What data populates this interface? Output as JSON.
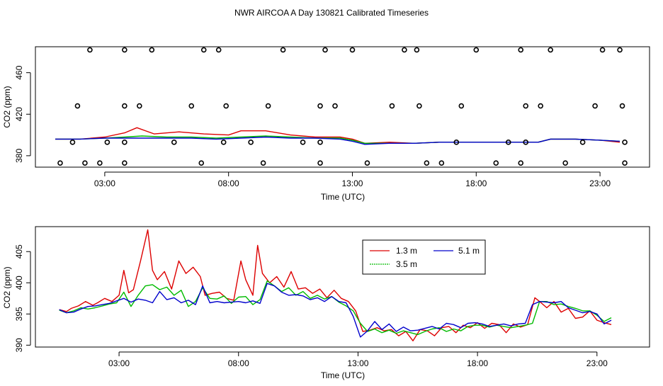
{
  "title": "NWR AIRCOA A  Day 130821  Calibrated Timeseries",
  "chart_data": [
    {
      "type": "scatter",
      "panel": "top",
      "xlabel": "Time (UTC)",
      "ylabel": "CO2 (ppm)",
      "xlim": [
        0.2,
        25.0
      ],
      "ylim": [
        369,
        485
      ],
      "xticks": [
        3,
        8,
        13,
        18,
        23
      ],
      "xtick_labels": [
        "03:00",
        "08:00",
        "13:00",
        "18:00",
        "23:00"
      ],
      "yticks": [
        380,
        420,
        460
      ],
      "yticks_labels": [
        "380",
        "420",
        "460"
      ],
      "calibration_points": {
        "name": "calibration standards",
        "x": [
          1.2,
          2.2,
          2.8,
          3.8,
          6.9,
          9.4,
          11.7,
          13.6,
          16.0,
          16.6,
          18.8,
          19.8,
          21.6,
          24.0,
          1.7,
          3.1,
          3.8,
          5.8,
          7.8,
          8.9,
          11.0,
          11.7,
          17.2,
          19.3,
          20.0,
          22.3,
          24.0,
          1.9,
          3.8,
          4.4,
          6.5,
          7.9,
          9.6,
          11.7,
          12.3,
          14.6,
          15.7,
          17.4,
          20.0,
          20.6,
          22.8,
          23.9,
          2.4,
          3.8,
          4.9,
          7.0,
          7.6,
          10.2,
          11.9,
          13.0,
          15.1,
          15.6,
          18.0,
          19.8,
          21.0,
          23.1,
          23.8
        ],
        "y": [
          373,
          373,
          373,
          373,
          373,
          373,
          373,
          373,
          373,
          373,
          373,
          373,
          373,
          373,
          393,
          393,
          393,
          393,
          393,
          393,
          393,
          393,
          393,
          393,
          393,
          393,
          393,
          428,
          428,
          428,
          428,
          428,
          428,
          428,
          428,
          428,
          428,
          428,
          428,
          428,
          428,
          428,
          482,
          482,
          482,
          482,
          482,
          482,
          482,
          482,
          482,
          482,
          482,
          482,
          482,
          482,
          482
        ]
      },
      "series": [
        {
          "name": "1.3 m",
          "color": "#dd0000",
          "x": [
            1.0,
            2.0,
            3.0,
            3.8,
            4.3,
            5.0,
            6.0,
            7.0,
            8.0,
            8.5,
            9.5,
            10.5,
            11.5,
            12.5,
            13.0,
            13.5,
            14.5,
            15.5,
            16.5,
            17.5,
            18.5,
            19.5,
            20.5,
            21.0,
            22.0,
            23.0,
            23.8
          ],
          "values": [
            396,
            396,
            398,
            402,
            407,
            401,
            403,
            401,
            400,
            404,
            404,
            400,
            398,
            398,
            396,
            392,
            393,
            392,
            393,
            393,
            393,
            393,
            393,
            396,
            396,
            395,
            393
          ]
        },
        {
          "name": "3.5 m",
          "color": "#00bb00",
          "x": [
            1.0,
            2.0,
            3.0,
            3.8,
            4.5,
            5.5,
            6.5,
            7.5,
            8.5,
            9.5,
            10.5,
            11.5,
            12.5,
            13.0,
            13.5,
            14.5,
            15.5,
            16.5,
            17.5,
            18.5,
            19.5,
            20.5,
            21.0,
            22.0,
            23.0,
            23.8
          ],
          "values": [
            396,
            396,
            397,
            398,
            399,
            398,
            398,
            397,
            398,
            399,
            398,
            397,
            397,
            395,
            392,
            392,
            392,
            393,
            393,
            393,
            393,
            393,
            396,
            396,
            395,
            394
          ]
        },
        {
          "name": "5.1 m",
          "color": "#0000cc",
          "x": [
            1.0,
            2.0,
            3.0,
            3.8,
            4.5,
            5.5,
            6.5,
            7.5,
            8.5,
            9.5,
            10.5,
            11.5,
            12.5,
            13.0,
            13.5,
            14.5,
            15.5,
            16.5,
            17.5,
            18.5,
            19.5,
            20.5,
            21.0,
            22.0,
            23.0,
            23.8
          ],
          "values": [
            396,
            396,
            397,
            397,
            397,
            397,
            397,
            396,
            397,
            398,
            397,
            397,
            396,
            394,
            391,
            392,
            392,
            393,
            393,
            393,
            393,
            393,
            396,
            396,
            395,
            394
          ]
        }
      ]
    },
    {
      "type": "line",
      "panel": "bottom",
      "xlabel": "Time (UTC)",
      "ylabel": "CO2 (ppm)",
      "xlim": [
        -0.5,
        25.2
      ],
      "ylim": [
        389.7,
        409.0
      ],
      "xticks": [
        3,
        8,
        13,
        18,
        23
      ],
      "xtick_labels": [
        "03:00",
        "08:00",
        "13:00",
        "18:00",
        "23:00"
      ],
      "yticks": [
        390,
        395,
        400,
        405
      ],
      "yticks_labels": [
        "390",
        "395",
        "400",
        "405"
      ],
      "legend": {
        "position": "top-center",
        "columns": 2
      },
      "series": [
        {
          "name": "1.3 m",
          "color": "#dd0000",
          "x": [
            0.5,
            0.8,
            1.0,
            1.3,
            1.6,
            1.9,
            2.1,
            2.4,
            2.7,
            3.0,
            3.2,
            3.4,
            3.6,
            3.9,
            4.2,
            4.4,
            4.6,
            4.9,
            5.2,
            5.5,
            5.8,
            6.1,
            6.4,
            6.6,
            6.9,
            7.2,
            7.5,
            7.8,
            8.1,
            8.3,
            8.6,
            8.8,
            9.0,
            9.3,
            9.6,
            9.9,
            10.2,
            10.5,
            10.8,
            11.1,
            11.4,
            11.7,
            12.0,
            12.3,
            12.6,
            12.9,
            13.2,
            13.5,
            13.8,
            14.1,
            14.4,
            14.7,
            15.0,
            15.3,
            15.6,
            15.9,
            16.2,
            16.5,
            16.8,
            17.1,
            17.4,
            17.7,
            18.0,
            18.3,
            18.6,
            18.9,
            19.2,
            19.5,
            19.8,
            20.1,
            20.4,
            20.6,
            20.9,
            21.2,
            21.5,
            21.8,
            22.1,
            22.4,
            22.7,
            23.0,
            23.3,
            23.6
          ],
          "values": [
            395.7,
            395.4,
            395.9,
            396.3,
            397.0,
            396.4,
            396.8,
            397.5,
            397.0,
            398.0,
            402.0,
            398.4,
            398.9,
            403.5,
            408.5,
            402.0,
            400.5,
            401.8,
            399.0,
            403.5,
            401.5,
            402.5,
            401.0,
            398.0,
            398.3,
            398.5,
            397.5,
            397.2,
            403.5,
            400.5,
            398.0,
            406.0,
            401.5,
            400.0,
            401.0,
            399.3,
            401.8,
            399.0,
            399.2,
            398.3,
            399.0,
            397.6,
            398.8,
            397.5,
            397.0,
            395.5,
            392.2,
            392.4,
            392.8,
            392.3,
            392.5,
            391.5,
            392.2,
            390.7,
            392.5,
            392.3,
            391.5,
            392.8,
            393.0,
            392.0,
            393.2,
            392.8,
            393.6,
            392.7,
            393.5,
            393.3,
            392.0,
            393.4,
            392.9,
            393.3,
            397.6,
            397.0,
            396.0,
            397.0,
            395.3,
            395.9,
            394.3,
            394.5,
            395.5,
            394.0,
            393.6,
            393.3
          ]
        },
        {
          "name": "3.5 m",
          "color": "#00bb00",
          "x": [
            0.5,
            0.8,
            1.1,
            1.4,
            1.7,
            2.0,
            2.3,
            2.6,
            2.9,
            3.2,
            3.5,
            3.8,
            4.1,
            4.4,
            4.7,
            5.0,
            5.3,
            5.6,
            5.9,
            6.2,
            6.5,
            6.8,
            7.1,
            7.4,
            7.7,
            8.0,
            8.3,
            8.6,
            8.9,
            9.2,
            9.5,
            9.8,
            10.1,
            10.4,
            10.7,
            11.0,
            11.3,
            11.6,
            11.9,
            12.2,
            12.5,
            12.8,
            13.1,
            13.4,
            13.7,
            14.0,
            14.3,
            14.6,
            14.9,
            15.2,
            15.5,
            15.8,
            16.1,
            16.4,
            16.7,
            17.0,
            17.3,
            17.6,
            17.9,
            18.2,
            18.5,
            18.8,
            19.1,
            19.4,
            19.7,
            20.0,
            20.3,
            20.6,
            20.9,
            21.2,
            21.5,
            21.8,
            22.1,
            22.4,
            22.7,
            23.0,
            23.3,
            23.6
          ],
          "values": [
            395.6,
            395.2,
            395.5,
            396.0,
            395.8,
            396.0,
            396.3,
            396.6,
            396.8,
            398.5,
            396.2,
            398.0,
            399.5,
            399.7,
            398.9,
            399.3,
            398.0,
            398.8,
            396.2,
            397.0,
            399.2,
            397.5,
            397.4,
            397.9,
            396.7,
            397.7,
            397.8,
            396.5,
            397.3,
            400.3,
            399.5,
            398.6,
            399.2,
            398.0,
            398.6,
            397.5,
            398.0,
            397.4,
            397.8,
            396.9,
            396.3,
            395.5,
            393.5,
            392.2,
            392.6,
            392.0,
            392.4,
            391.9,
            392.3,
            392.0,
            391.7,
            392.2,
            392.6,
            392.8,
            392.2,
            392.6,
            392.3,
            393.0,
            393.2,
            393.2,
            392.9,
            393.2,
            393.0,
            392.8,
            393.0,
            393.2,
            393.5,
            397.0,
            397.0,
            396.5,
            396.6,
            396.2,
            395.9,
            395.5,
            395.5,
            394.8,
            393.8,
            394.4
          ]
        },
        {
          "name": "5.1 m",
          "color": "#0000cc",
          "x": [
            0.5,
            0.8,
            1.1,
            1.4,
            1.7,
            2.0,
            2.3,
            2.6,
            2.9,
            3.2,
            3.5,
            3.8,
            4.1,
            4.4,
            4.7,
            5.0,
            5.3,
            5.6,
            5.9,
            6.2,
            6.5,
            6.8,
            7.1,
            7.4,
            7.7,
            8.0,
            8.3,
            8.6,
            8.9,
            9.2,
            9.5,
            9.8,
            10.1,
            10.4,
            10.7,
            11.0,
            11.3,
            11.6,
            11.9,
            12.2,
            12.5,
            12.8,
            13.1,
            13.4,
            13.7,
            14.0,
            14.3,
            14.6,
            14.9,
            15.2,
            15.5,
            15.8,
            16.1,
            16.4,
            16.7,
            17.0,
            17.3,
            17.6,
            17.9,
            18.2,
            18.5,
            18.8,
            19.1,
            19.4,
            19.7,
            20.0,
            20.3,
            20.6,
            20.9,
            21.2,
            21.5,
            21.8,
            22.1,
            22.4,
            22.7,
            23.0,
            23.3,
            23.6
          ],
          "values": [
            395.7,
            395.2,
            395.3,
            395.8,
            396.2,
            396.3,
            396.5,
            396.7,
            397.1,
            397.5,
            396.9,
            397.4,
            397.2,
            396.8,
            398.6,
            397.3,
            397.6,
            396.8,
            397.2,
            396.5,
            399.5,
            396.8,
            397.0,
            396.8,
            396.9,
            397.0,
            396.8,
            397.1,
            396.7,
            399.9,
            399.5,
            398.5,
            398.0,
            398.1,
            397.9,
            397.3,
            397.6,
            397.0,
            397.8,
            397.0,
            396.8,
            394.6,
            391.3,
            392.3,
            393.8,
            392.5,
            393.4,
            392.2,
            392.9,
            392.3,
            392.4,
            392.7,
            393.0,
            392.6,
            393.5,
            393.3,
            392.8,
            393.5,
            393.6,
            393.4,
            393.0,
            393.2,
            393.4,
            393.1,
            393.4,
            393.5,
            396.5,
            397.0,
            396.9,
            396.8,
            397.0,
            396.0,
            395.6,
            395.2,
            395.4,
            395.0,
            393.4,
            394.0
          ]
        }
      ]
    }
  ]
}
